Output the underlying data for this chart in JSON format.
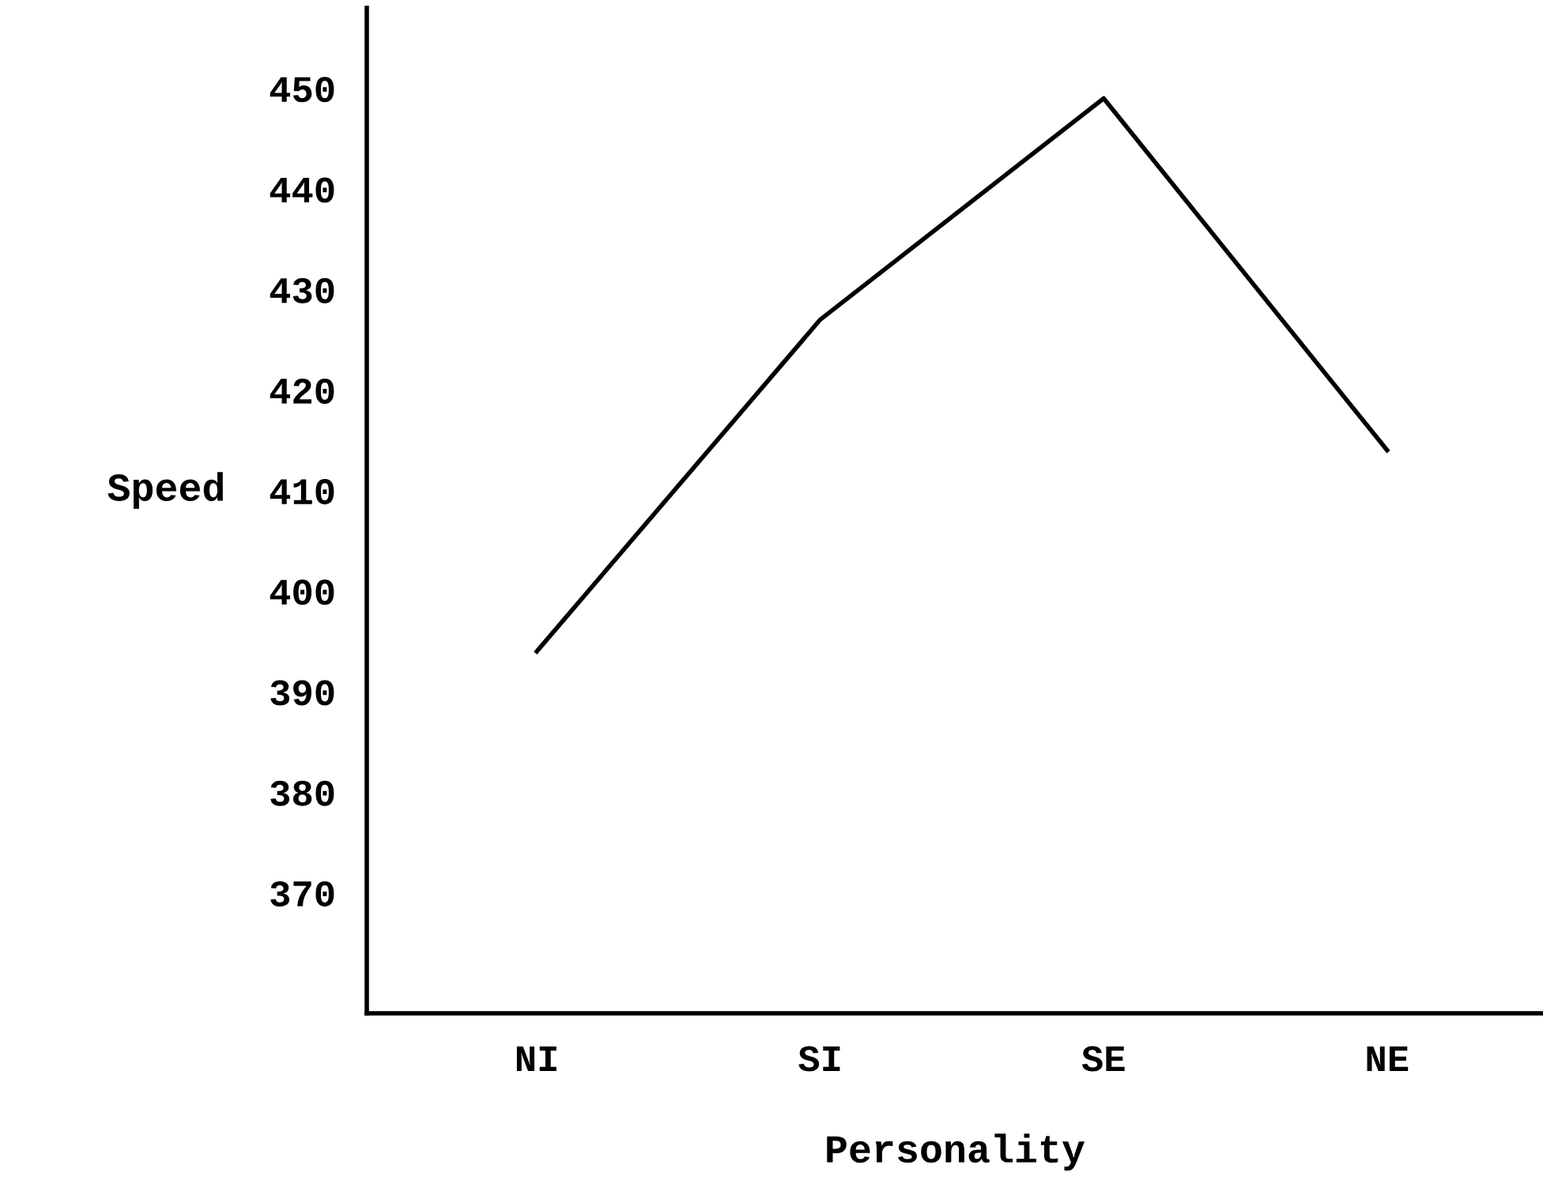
{
  "chart_data": {
    "type": "line",
    "xlabel": "Personality",
    "ylabel": "Speed",
    "categories": [
      "NI",
      "SI",
      "SE",
      "NE"
    ],
    "series": [
      {
        "color": "#000000",
        "values": [
          394,
          427,
          449,
          414
        ]
      }
    ],
    "ylim": [
      358,
      458
    ],
    "yticks": [
      370,
      380,
      390,
      400,
      410,
      420,
      430,
      440,
      450
    ],
    "grid": false,
    "legend": false,
    "marker": "none",
    "line_style": "solid"
  }
}
